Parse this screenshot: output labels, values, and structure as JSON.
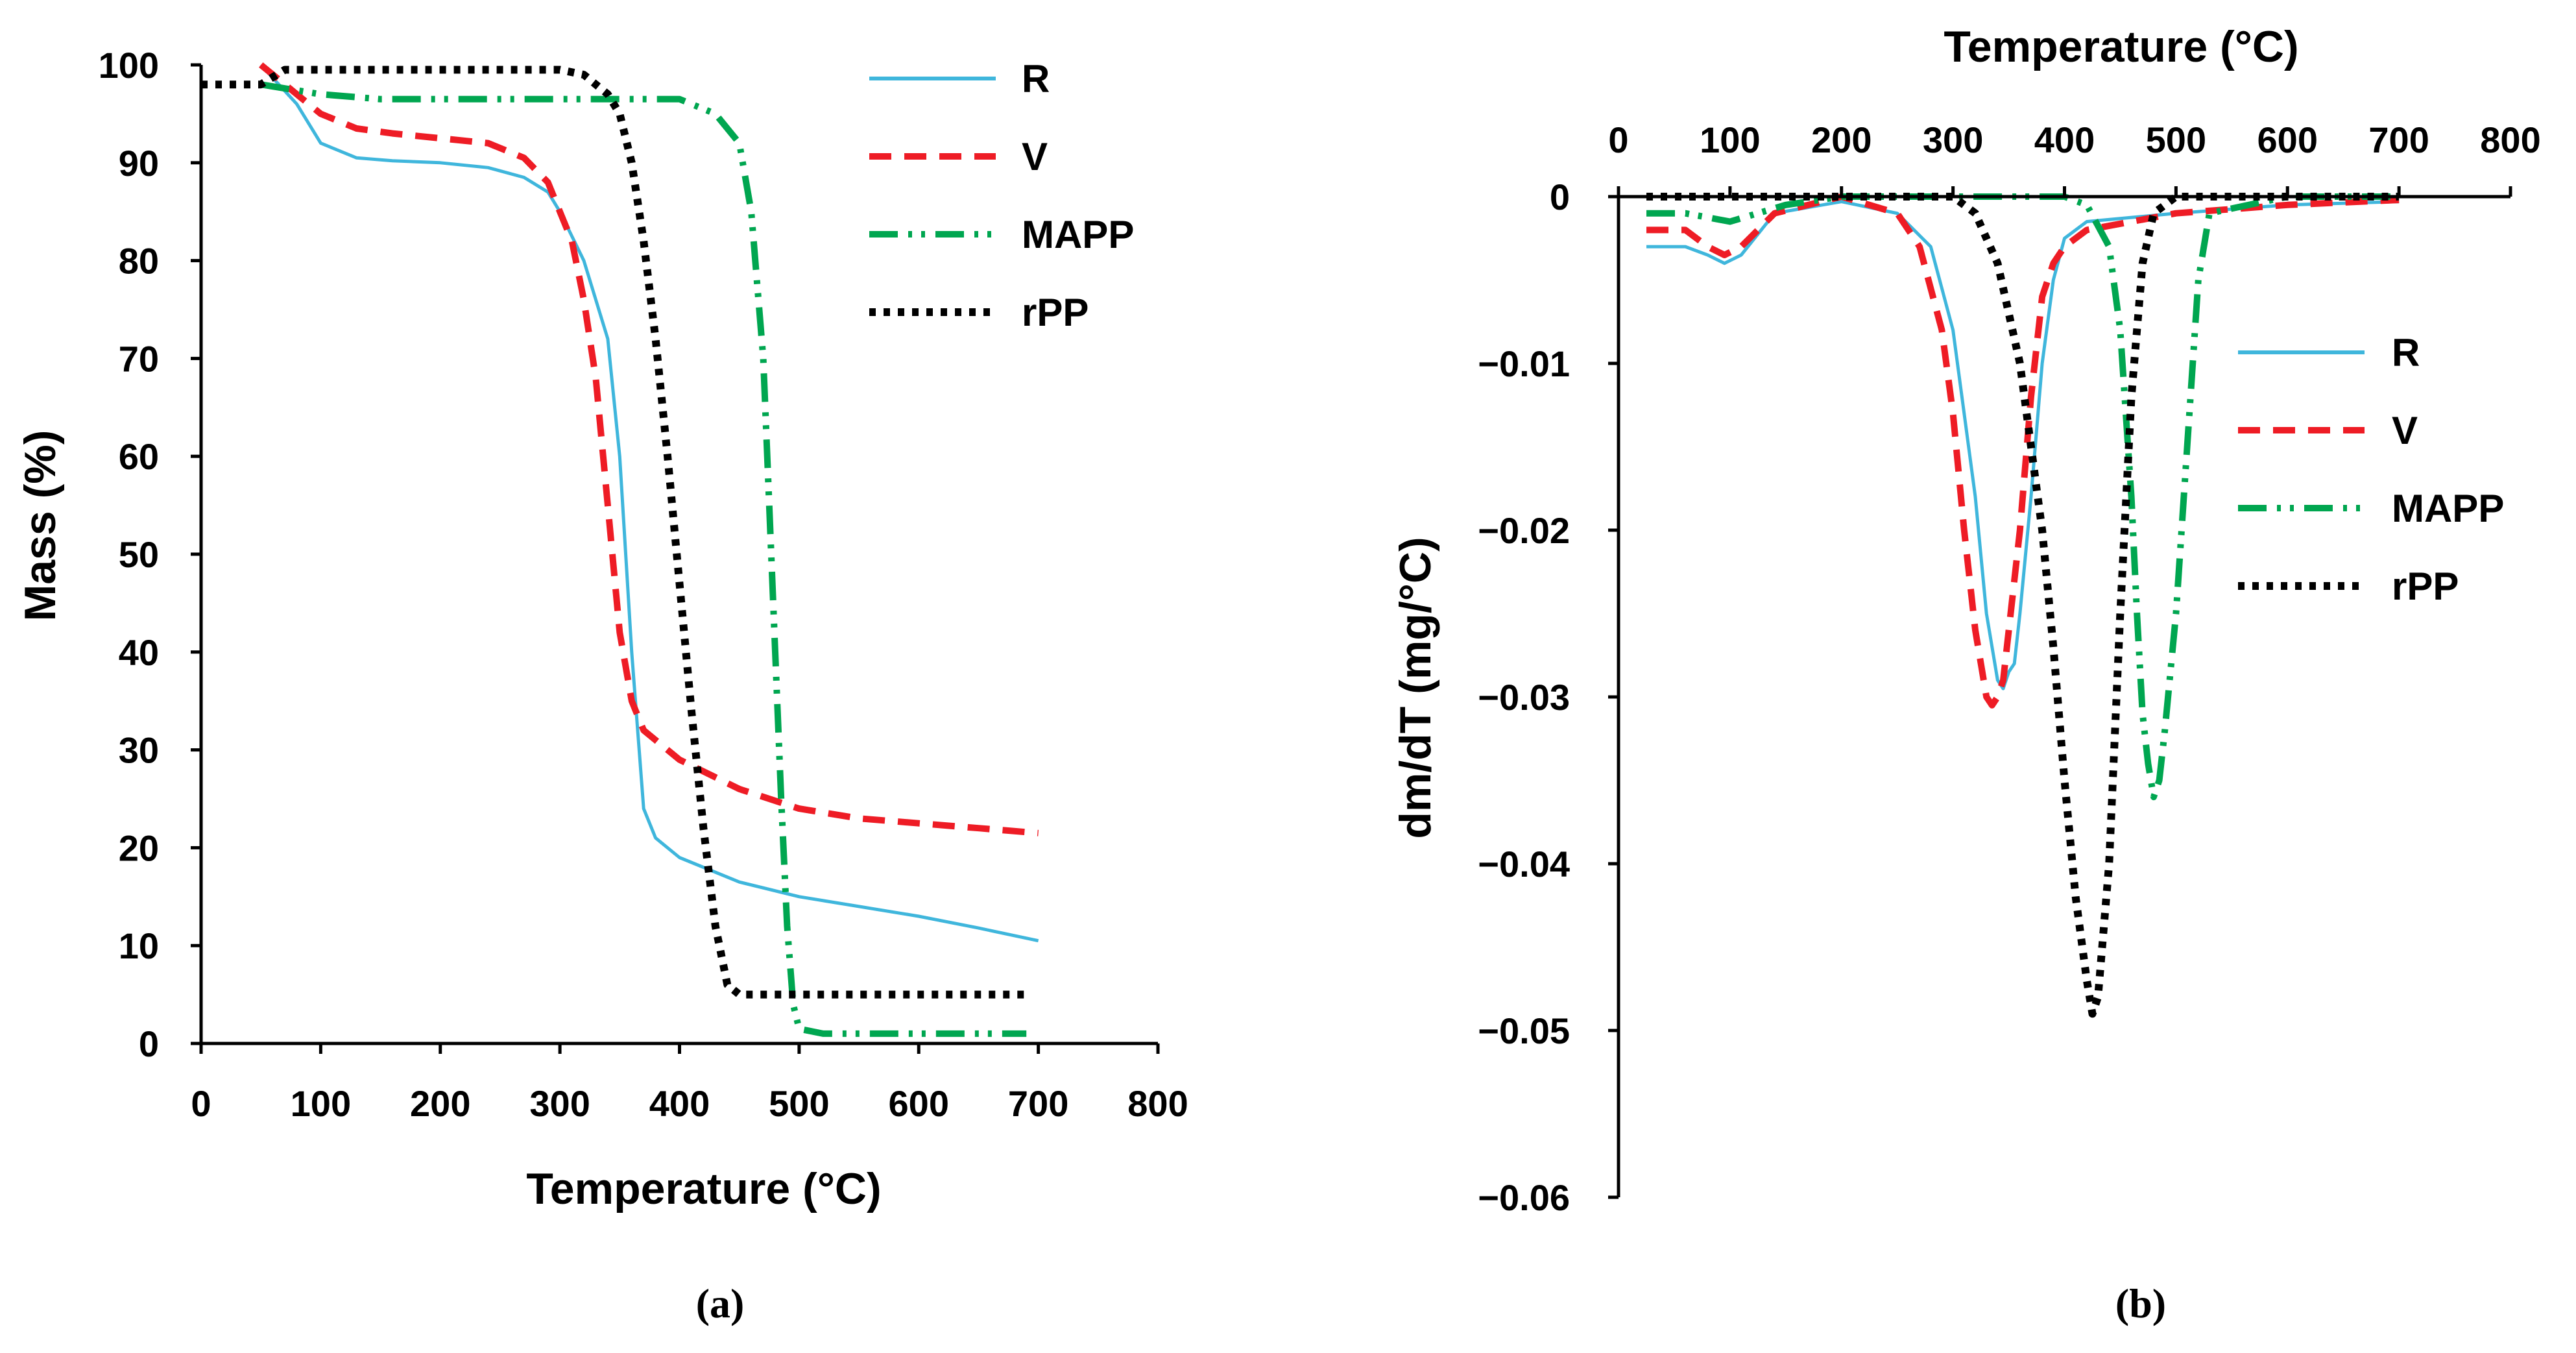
{
  "chart_data": [
    {
      "type": "line",
      "panel": "a",
      "caption": "(a)",
      "title": "",
      "xlabel": "Temperature (°C)",
      "ylabel": "Mass (%)",
      "xlim": [
        0,
        800
      ],
      "ylim": [
        0,
        100
      ],
      "xticks": [
        0,
        100,
        200,
        300,
        400,
        500,
        600,
        700,
        800
      ],
      "yticks": [
        0,
        10,
        20,
        30,
        40,
        50,
        60,
        70,
        80,
        90,
        100
      ],
      "grid": false,
      "legend_position": "top-right",
      "series": [
        {
          "name": "R",
          "color": "#3fb6dc",
          "style": "solid",
          "x": [
            50,
            80,
            100,
            130,
            160,
            200,
            240,
            270,
            290,
            300,
            320,
            340,
            350,
            360,
            370,
            380,
            400,
            450,
            500,
            550,
            600,
            650,
            700
          ],
          "y": [
            100,
            96,
            92,
            90.5,
            90.2,
            90,
            89.5,
            88.5,
            87,
            85,
            80,
            72,
            60,
            40,
            24,
            21,
            19,
            16.5,
            15,
            14,
            13,
            11.8,
            10.5
          ]
        },
        {
          "name": "V",
          "color": "#ee1c25",
          "style": "dashed",
          "x": [
            50,
            80,
            100,
            130,
            160,
            200,
            240,
            270,
            290,
            300,
            310,
            320,
            330,
            340,
            350,
            360,
            370,
            400,
            450,
            500,
            550,
            600,
            650,
            700
          ],
          "y": [
            100,
            97,
            95,
            93.5,
            93,
            92.5,
            92,
            90.5,
            88,
            85,
            82,
            76,
            68,
            55,
            42,
            35,
            32,
            29,
            26,
            24,
            23,
            22.5,
            22,
            21.5
          ]
        },
        {
          "name": "MAPP",
          "color": "#00a650",
          "style": "dashdotdot",
          "x": [
            50,
            100,
            150,
            200,
            300,
            400,
            430,
            450,
            460,
            470,
            475,
            480,
            485,
            490,
            495,
            500,
            520,
            600,
            690
          ],
          "y": [
            98,
            97,
            96.5,
            96.5,
            96.5,
            96.5,
            95,
            92,
            85,
            70,
            55,
            40,
            25,
            12,
            4,
            1.5,
            1,
            1,
            1
          ]
        },
        {
          "name": "rPP",
          "color": "#000000",
          "style": "dotted",
          "x": [
            0,
            50,
            70,
            100,
            200,
            300,
            320,
            340,
            350,
            360,
            370,
            380,
            390,
            400,
            410,
            420,
            430,
            440,
            450,
            460,
            500,
            600,
            690
          ],
          "y": [
            98,
            98,
            99.5,
            99.5,
            99.5,
            99.5,
            99,
            97,
            95,
            90,
            82,
            72,
            60,
            47,
            34,
            22,
            12,
            6,
            5,
            5,
            5,
            5,
            5
          ]
        }
      ]
    },
    {
      "type": "line",
      "panel": "b",
      "caption": "(b)",
      "title": "",
      "xlabel": "Temperature (°C)",
      "xlabel_position": "top",
      "ylabel": "dm/dT (mg/°C)",
      "xlim": [
        0,
        800
      ],
      "ylim": [
        -0.06,
        0
      ],
      "xticks": [
        0,
        100,
        200,
        300,
        400,
        500,
        600,
        700,
        800
      ],
      "yticks": [
        0,
        -0.01,
        -0.02,
        -0.03,
        -0.04,
        -0.05,
        -0.06
      ],
      "ytick_labels": [
        "0",
        "−0.01",
        "−0.02",
        "−0.03",
        "−0.04",
        "−0.05",
        "−0.06"
      ],
      "grid": false,
      "legend_position": "right",
      "series": [
        {
          "name": "R",
          "color": "#3fb6dc",
          "style": "solid",
          "x": [
            25,
            60,
            80,
            95,
            110,
            140,
            200,
            250,
            280,
            300,
            320,
            330,
            340,
            345,
            350,
            355,
            360,
            370,
            380,
            390,
            400,
            420,
            500,
            600,
            700
          ],
          "y": [
            -0.003,
            -0.003,
            -0.0035,
            -0.004,
            -0.0035,
            -0.001,
            -0.0003,
            -0.001,
            -0.003,
            -0.008,
            -0.018,
            -0.025,
            -0.029,
            -0.0295,
            -0.0285,
            -0.028,
            -0.025,
            -0.018,
            -0.01,
            -0.005,
            -0.0025,
            -0.0015,
            -0.001,
            -0.0005,
            -0.0003
          ]
        },
        {
          "name": "V",
          "color": "#ee1c25",
          "style": "dashed",
          "x": [
            25,
            60,
            80,
            95,
            110,
            140,
            200,
            250,
            270,
            290,
            300,
            310,
            320,
            330,
            335,
            340,
            345,
            350,
            360,
            370,
            380,
            390,
            400,
            420,
            500,
            600,
            700
          ],
          "y": [
            -0.002,
            -0.002,
            -0.003,
            -0.0035,
            -0.003,
            -0.001,
            0,
            -0.001,
            -0.003,
            -0.008,
            -0.013,
            -0.02,
            -0.026,
            -0.03,
            -0.0305,
            -0.03,
            -0.029,
            -0.026,
            -0.02,
            -0.012,
            -0.006,
            -0.004,
            -0.003,
            -0.002,
            -0.001,
            -0.0005,
            -0.0002
          ]
        },
        {
          "name": "MAPP",
          "color": "#00a650",
          "style": "dashdotdot",
          "x": [
            25,
            60,
            100,
            150,
            200,
            300,
            400,
            420,
            440,
            450,
            460,
            465,
            470,
            475,
            480,
            485,
            490,
            500,
            510,
            520,
            530,
            600,
            700
          ],
          "y": [
            -0.001,
            -0.001,
            -0.0015,
            -0.0005,
            0,
            0,
            0,
            -0.0005,
            -0.003,
            -0.008,
            -0.018,
            -0.025,
            -0.031,
            -0.034,
            -0.036,
            -0.035,
            -0.032,
            -0.025,
            -0.015,
            -0.005,
            -0.001,
            0,
            0
          ]
        },
        {
          "name": "rPP",
          "color": "#000000",
          "style": "dotted",
          "x": [
            25,
            200,
            300,
            320,
            340,
            360,
            380,
            390,
            400,
            410,
            420,
            425,
            430,
            440,
            450,
            460,
            470,
            480,
            500,
            600,
            700
          ],
          "y": [
            0,
            0,
            0,
            -0.001,
            -0.004,
            -0.01,
            -0.02,
            -0.027,
            -0.035,
            -0.042,
            -0.047,
            -0.049,
            -0.048,
            -0.04,
            -0.025,
            -0.012,
            -0.004,
            -0.001,
            0,
            0,
            0
          ]
        }
      ]
    }
  ]
}
